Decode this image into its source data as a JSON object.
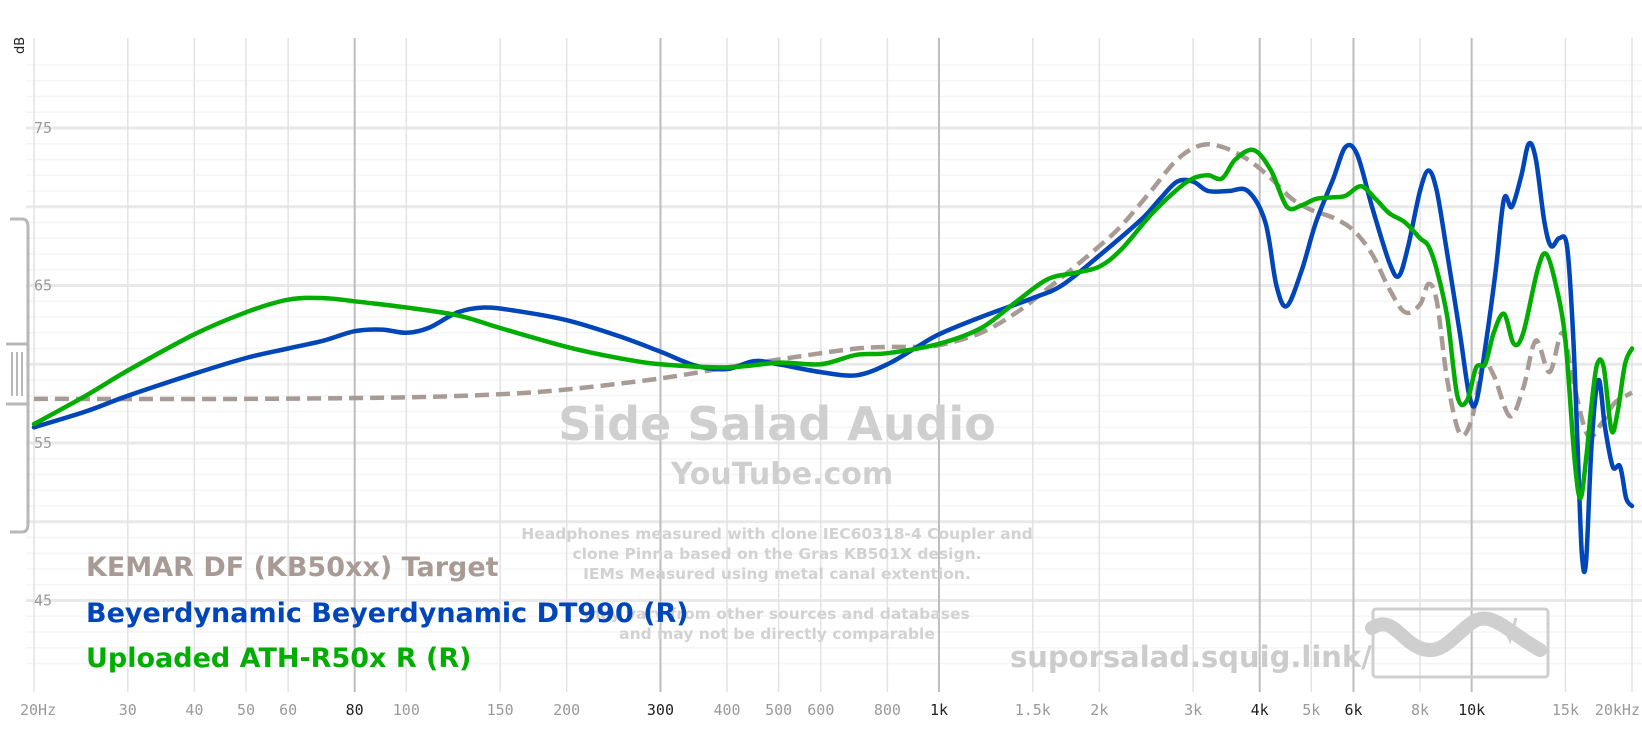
{
  "chart_data": {
    "type": "line",
    "xscale": "log",
    "xlim": [
      20,
      20000
    ],
    "ylim": [
      40,
      80
    ],
    "ylabel": "dB",
    "y_ticks": [
      75,
      65,
      55,
      45
    ],
    "x_ticks": [
      {
        "value": 20,
        "label": "20Hz",
        "major": false
      },
      {
        "value": 30,
        "label": "30",
        "major": false
      },
      {
        "value": 40,
        "label": "40",
        "major": false
      },
      {
        "value": 50,
        "label": "50",
        "major": false
      },
      {
        "value": 60,
        "label": "60",
        "major": false
      },
      {
        "value": 80,
        "label": "80",
        "major": true
      },
      {
        "value": 100,
        "label": "100",
        "major": false
      },
      {
        "value": 150,
        "label": "150",
        "major": false
      },
      {
        "value": 200,
        "label": "200",
        "major": false
      },
      {
        "value": 300,
        "label": "300",
        "major": true
      },
      {
        "value": 400,
        "label": "400",
        "major": false
      },
      {
        "value": 500,
        "label": "500",
        "major": false
      },
      {
        "value": 600,
        "label": "600",
        "major": false
      },
      {
        "value": 800,
        "label": "800",
        "major": false
      },
      {
        "value": 1000,
        "label": "1k",
        "major": true
      },
      {
        "value": 1500,
        "label": "1.5k",
        "major": false
      },
      {
        "value": 2000,
        "label": "2k",
        "major": false
      },
      {
        "value": 3000,
        "label": "3k",
        "major": false
      },
      {
        "value": 4000,
        "label": "4k",
        "major": true
      },
      {
        "value": 5000,
        "label": "5k",
        "major": false
      },
      {
        "value": 6000,
        "label": "6k",
        "major": true
      },
      {
        "value": 8000,
        "label": "8k",
        "major": false
      },
      {
        "value": 10000,
        "label": "10k",
        "major": true
      },
      {
        "value": 15000,
        "label": "15k",
        "major": false
      },
      {
        "value": 20000,
        "label": "20kHz",
        "major": false
      }
    ],
    "series": [
      {
        "name": "KEMAR DF (KB50xx) Target",
        "color": "#a89b95",
        "dashed": true,
        "points": [
          [
            20,
            57.8
          ],
          [
            50,
            57.8
          ],
          [
            100,
            57.9
          ],
          [
            150,
            58.1
          ],
          [
            200,
            58.4
          ],
          [
            300,
            59.1
          ],
          [
            400,
            59.8
          ],
          [
            500,
            60.3
          ],
          [
            600,
            60.7
          ],
          [
            700,
            61.0
          ],
          [
            800,
            61.1
          ],
          [
            900,
            61.1
          ],
          [
            1000,
            61.2
          ],
          [
            1200,
            62.0
          ],
          [
            1400,
            63.3
          ],
          [
            1600,
            64.8
          ],
          [
            1800,
            66.2
          ],
          [
            2000,
            67.5
          ],
          [
            2200,
            68.8
          ],
          [
            2500,
            71.0
          ],
          [
            2800,
            73.0
          ],
          [
            3100,
            73.9
          ],
          [
            3400,
            73.8
          ],
          [
            3800,
            73.0
          ],
          [
            4200,
            71.8
          ],
          [
            4600,
            70.5
          ],
          [
            5000,
            69.8
          ],
          [
            5500,
            69.3
          ],
          [
            6000,
            68.5
          ],
          [
            6500,
            67.0
          ],
          [
            7000,
            64.8
          ],
          [
            7500,
            63.3
          ],
          [
            8000,
            63.8
          ],
          [
            8300,
            65.1
          ],
          [
            8600,
            64.0
          ],
          [
            9000,
            59.0
          ],
          [
            9500,
            55.6
          ],
          [
            10000,
            56.5
          ],
          [
            10500,
            60.0
          ],
          [
            11000,
            59.3
          ],
          [
            11800,
            56.7
          ],
          [
            12500,
            58.5
          ],
          [
            13200,
            61.5
          ],
          [
            14000,
            59.5
          ],
          [
            14800,
            62.0
          ],
          [
            15500,
            59.0
          ],
          [
            16500,
            55.5
          ],
          [
            17500,
            56.2
          ],
          [
            18500,
            57.5
          ],
          [
            19500,
            58.0
          ],
          [
            20000,
            58.2
          ]
        ]
      },
      {
        "name": "Beyerdynamic Beyerdynamic DT990 (R)",
        "color": "#0046b8",
        "dashed": false,
        "points": [
          [
            20,
            56.0
          ],
          [
            25,
            57.0
          ],
          [
            30,
            58.0
          ],
          [
            40,
            59.4
          ],
          [
            50,
            60.4
          ],
          [
            60,
            61.0
          ],
          [
            70,
            61.5
          ],
          [
            80,
            62.1
          ],
          [
            90,
            62.2
          ],
          [
            100,
            62.0
          ],
          [
            110,
            62.3
          ],
          [
            125,
            63.3
          ],
          [
            140,
            63.6
          ],
          [
            160,
            63.4
          ],
          [
            200,
            62.8
          ],
          [
            250,
            61.8
          ],
          [
            300,
            60.8
          ],
          [
            350,
            59.9
          ],
          [
            400,
            59.7
          ],
          [
            450,
            60.2
          ],
          [
            500,
            60.0
          ],
          [
            600,
            59.5
          ],
          [
            700,
            59.3
          ],
          [
            800,
            60.0
          ],
          [
            900,
            61.0
          ],
          [
            1000,
            61.9
          ],
          [
            1200,
            63.0
          ],
          [
            1500,
            64.2
          ],
          [
            1700,
            65.0
          ],
          [
            2000,
            66.9
          ],
          [
            2400,
            69.2
          ],
          [
            2600,
            70.5
          ],
          [
            2800,
            71.6
          ],
          [
            3000,
            71.6
          ],
          [
            3200,
            71.0
          ],
          [
            3500,
            71.0
          ],
          [
            3800,
            71.0
          ],
          [
            4100,
            69.0
          ],
          [
            4300,
            65.0
          ],
          [
            4500,
            63.7
          ],
          [
            4800,
            66.0
          ],
          [
            5100,
            69.0
          ],
          [
            5500,
            71.8
          ],
          [
            5800,
            73.8
          ],
          [
            6100,
            73.3
          ],
          [
            6500,
            70.0
          ],
          [
            7000,
            66.5
          ],
          [
            7300,
            65.6
          ],
          [
            7600,
            67.5
          ],
          [
            8000,
            71.0
          ],
          [
            8300,
            72.3
          ],
          [
            8600,
            71.0
          ],
          [
            9000,
            67.0
          ],
          [
            9500,
            62.0
          ],
          [
            9900,
            58.0
          ],
          [
            10200,
            57.6
          ],
          [
            10600,
            61.0
          ],
          [
            11100,
            66.0
          ],
          [
            11500,
            70.5
          ],
          [
            11900,
            70.0
          ],
          [
            12400,
            72.0
          ],
          [
            12800,
            74.0
          ],
          [
            13200,
            73.0
          ],
          [
            13700,
            69.0
          ],
          [
            14100,
            67.5
          ],
          [
            14600,
            68.0
          ],
          [
            15100,
            67.5
          ],
          [
            15500,
            62.0
          ],
          [
            15800,
            55.0
          ],
          [
            16100,
            48.0
          ],
          [
            16400,
            47.5
          ],
          [
            16800,
            55.0
          ],
          [
            17300,
            59.0
          ],
          [
            17800,
            56.0
          ],
          [
            18400,
            53.5
          ],
          [
            19000,
            53.5
          ],
          [
            19500,
            51.5
          ],
          [
            20000,
            51.0
          ]
        ]
      },
      {
        "name": "Uploaded ATH-R50x R (R)",
        "color": "#00ad00",
        "dashed": false,
        "points": [
          [
            20,
            56.2
          ],
          [
            25,
            58.0
          ],
          [
            30,
            59.6
          ],
          [
            40,
            61.9
          ],
          [
            50,
            63.3
          ],
          [
            60,
            64.1
          ],
          [
            70,
            64.2
          ],
          [
            80,
            64.0
          ],
          [
            100,
            63.6
          ],
          [
            125,
            63.1
          ],
          [
            150,
            62.3
          ],
          [
            200,
            61.1
          ],
          [
            250,
            60.4
          ],
          [
            300,
            60.0
          ],
          [
            400,
            59.8
          ],
          [
            500,
            60.1
          ],
          [
            600,
            60.0
          ],
          [
            700,
            60.6
          ],
          [
            800,
            60.7
          ],
          [
            1000,
            61.3
          ],
          [
            1200,
            62.3
          ],
          [
            1400,
            64.0
          ],
          [
            1600,
            65.4
          ],
          [
            1800,
            65.8
          ],
          [
            2000,
            66.2
          ],
          [
            2200,
            67.3
          ],
          [
            2500,
            69.5
          ],
          [
            2800,
            71.1
          ],
          [
            3000,
            71.8
          ],
          [
            3200,
            72.0
          ],
          [
            3400,
            71.8
          ],
          [
            3600,
            73.0
          ],
          [
            3900,
            73.6
          ],
          [
            4200,
            72.3
          ],
          [
            4500,
            70.0
          ],
          [
            4800,
            70.1
          ],
          [
            5100,
            70.5
          ],
          [
            5500,
            70.6
          ],
          [
            5800,
            70.7
          ],
          [
            6200,
            71.3
          ],
          [
            6600,
            70.5
          ],
          [
            7000,
            69.6
          ],
          [
            7500,
            69.0
          ],
          [
            8000,
            68.0
          ],
          [
            8300,
            67.5
          ],
          [
            8600,
            66.0
          ],
          [
            9000,
            63.0
          ],
          [
            9400,
            58.0
          ],
          [
            9800,
            57.7
          ],
          [
            10200,
            59.8
          ],
          [
            10600,
            60.0
          ],
          [
            11000,
            62.0
          ],
          [
            11500,
            63.2
          ],
          [
            12000,
            61.3
          ],
          [
            12500,
            62.0
          ],
          [
            13300,
            66.0
          ],
          [
            13800,
            67.0
          ],
          [
            14400,
            65.0
          ],
          [
            15000,
            61.5
          ],
          [
            15600,
            54.0
          ],
          [
            16000,
            51.5
          ],
          [
            16400,
            54.0
          ],
          [
            16800,
            57.5
          ],
          [
            17200,
            60.0
          ],
          [
            17700,
            59.8
          ],
          [
            18300,
            55.8
          ],
          [
            18800,
            57.0
          ],
          [
            19400,
            60.0
          ],
          [
            20000,
            61.0
          ]
        ]
      }
    ]
  },
  "watermark": {
    "title": "Side Salad Audio",
    "subtitle": "YouTube.com",
    "notes": [
      "Headphones measured with clone IEC60318-4 Coupler and",
      "clone Pinna based on the Gras KB501X design.",
      "IEMs Measured using metal canal extention.",
      "may vary from other sources and databases",
      "and may not be directly comparable"
    ],
    "url": "suporsalad.squig.link/"
  }
}
